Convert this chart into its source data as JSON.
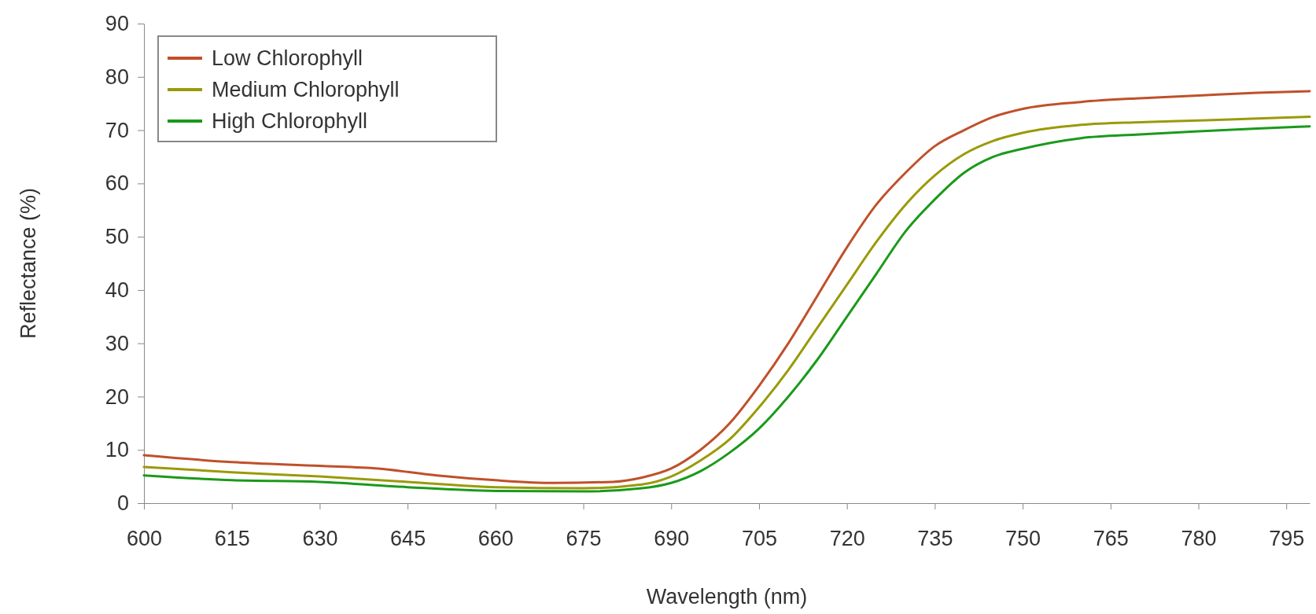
{
  "chart_data": {
    "type": "line",
    "xlabel": "Wavelength (nm)",
    "ylabel": "Reflectance (%)",
    "xlim": [
      600,
      799
    ],
    "xticks": [
      600,
      615,
      630,
      645,
      660,
      675,
      690,
      705,
      720,
      735,
      750,
      765,
      780,
      795
    ],
    "ylim": [
      0,
      90
    ],
    "yticks": [
      0,
      10,
      20,
      30,
      40,
      50,
      60,
      70,
      80,
      90
    ],
    "grid": false,
    "legend": "top left",
    "marker": "none",
    "line_style": "solid",
    "series": [
      {
        "name": "Low Chlorophyll",
        "color": "#c0502a",
        "x": [
          600,
          615,
          630,
          640,
          650,
          660,
          670,
          680,
          685,
          690,
          695,
          700,
          705,
          710,
          715,
          720,
          725,
          730,
          735,
          740,
          745,
          750,
          760,
          770,
          780,
          790,
          799
        ],
        "values": [
          9,
          7.7,
          7,
          6.5,
          5.2,
          4.3,
          3.8,
          4,
          4.8,
          6.5,
          10,
          15,
          22,
          30,
          39,
          48,
          56,
          62,
          67,
          70,
          72.5,
          74,
          75.3,
          76,
          76.5,
          77,
          77.3
        ]
      },
      {
        "name": "Medium Chlorophyll",
        "color": "#9a9a0a",
        "x": [
          600,
          615,
          630,
          645,
          660,
          675,
          685,
          690,
          695,
          700,
          705,
          710,
          715,
          720,
          725,
          730,
          735,
          740,
          745,
          750,
          760,
          770,
          780,
          790,
          799
        ],
        "values": [
          6.8,
          5.8,
          5,
          4,
          3,
          2.8,
          3.5,
          5,
          8,
          12,
          18,
          25,
          33,
          41,
          49,
          56,
          61.5,
          65.5,
          68,
          69.5,
          71,
          71.5,
          71.8,
          72.2,
          72.5
        ]
      },
      {
        "name": "High Chlorophyll",
        "color": "#1a9a1a",
        "x": [
          600,
          615,
          630,
          645,
          660,
          675,
          685,
          690,
          695,
          700,
          705,
          710,
          715,
          720,
          725,
          730,
          735,
          740,
          745,
          750,
          760,
          770,
          780,
          790,
          799
        ],
        "values": [
          5.2,
          4.3,
          4,
          3,
          2.3,
          2.2,
          2.8,
          3.8,
          6,
          9.5,
          14,
          20,
          27,
          35,
          43,
          51,
          57,
          62,
          65,
          66.5,
          68.5,
          69.2,
          69.8,
          70.3,
          70.7
        ]
      }
    ]
  }
}
